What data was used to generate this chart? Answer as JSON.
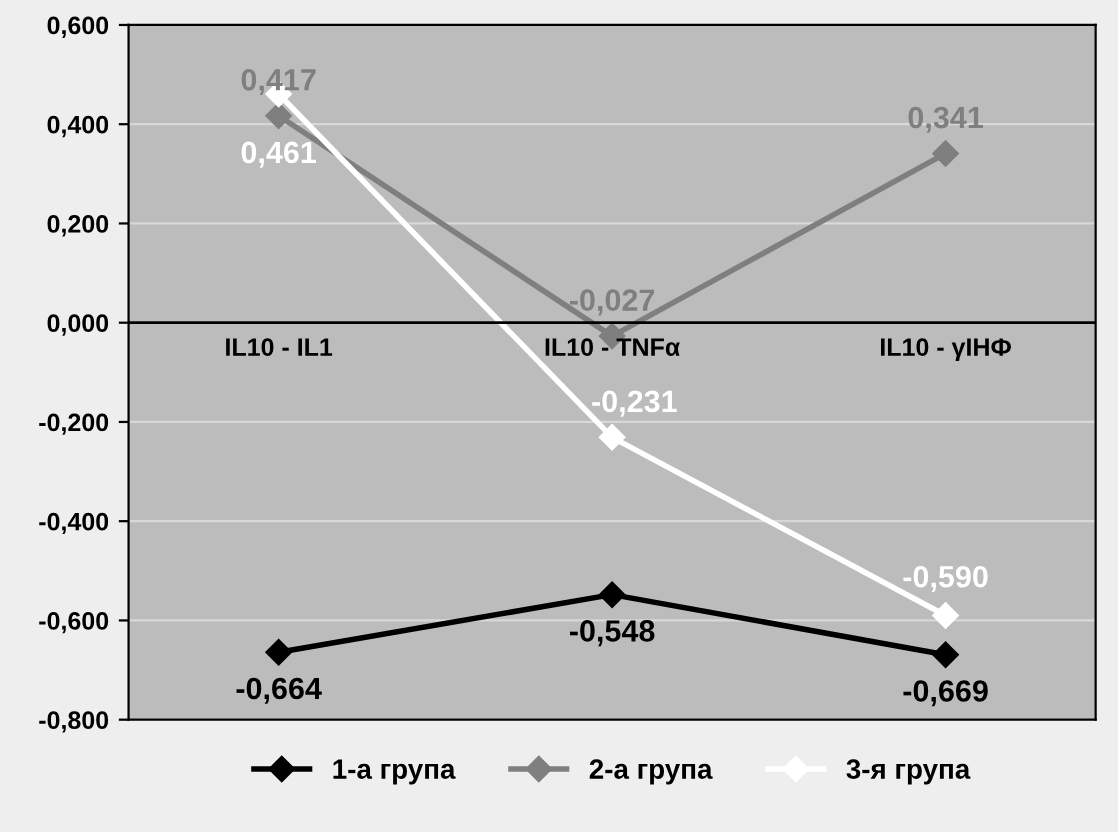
{
  "chart_data": {
    "type": "line",
    "categories": [
      "IL10 - IL1",
      "IL10 - TNFα",
      "IL10 - γІНФ"
    ],
    "series": [
      {
        "name": "1-а група",
        "color": "#000000",
        "values": [
          -0.664,
          -0.548,
          -0.669
        ],
        "value_labels": [
          "-0,664",
          "-0,548",
          "-0,669"
        ]
      },
      {
        "name": "2-а група",
        "color": "#7f7f7f",
        "values": [
          0.417,
          -0.027,
          0.341
        ],
        "value_labels": [
          "0,417",
          "-0,027",
          "0,341"
        ]
      },
      {
        "name": "3-я група",
        "color": "#ffffff",
        "values": [
          0.461,
          -0.231,
          -0.59
        ],
        "value_labels": [
          "0,461",
          "-0,231",
          "-0,590"
        ]
      }
    ],
    "ylim": [
      -0.8,
      0.6
    ],
    "yticks": [
      {
        "value": -0.8,
        "label": "-0,800"
      },
      {
        "value": -0.6,
        "label": "-0,600"
      },
      {
        "value": -0.4,
        "label": "-0,400"
      },
      {
        "value": -0.2,
        "label": "-0,200"
      },
      {
        "value": 0,
        "label": "0,000"
      },
      {
        "value": 0.2,
        "label": "0,200"
      },
      {
        "value": 0.4,
        "label": "0,400"
      },
      {
        "value": 0.6,
        "label": "0,600"
      }
    ],
    "grid": "y",
    "legend": "bottom",
    "marker": "diamond",
    "line_style": "solid"
  }
}
